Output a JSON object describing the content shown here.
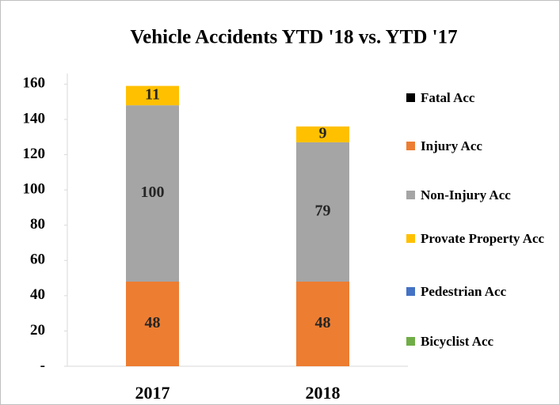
{
  "chart_data": {
    "type": "stacked-bar",
    "title": "Vehicle Accidents YTD '18 vs. YTD '17",
    "categories": [
      "2017",
      "2018"
    ],
    "series": [
      {
        "name": "Fatal Acc",
        "color": "#000000",
        "values": [
          0,
          0
        ]
      },
      {
        "name": "Injury Acc",
        "color": "#ed7d31",
        "values": [
          48,
          48
        ]
      },
      {
        "name": "Non-Injury Acc",
        "color": "#a5a5a5",
        "values": [
          100,
          79
        ]
      },
      {
        "name": "Provate Property Acc",
        "color": "#ffc000",
        "values": [
          11,
          9
        ]
      },
      {
        "name": "Pedestrian Acc",
        "color": "#4472c4",
        "values": [
          0,
          0
        ]
      },
      {
        "name": "Bicyclist Acc",
        "color": "#70ad47",
        "values": [
          0,
          0
        ]
      }
    ],
    "ylim": [
      0,
      166
    ],
    "yticks": [
      {
        "value": 0,
        "label": "-"
      },
      20,
      40,
      60,
      80,
      100,
      120,
      140,
      160
    ],
    "legend": "right"
  }
}
